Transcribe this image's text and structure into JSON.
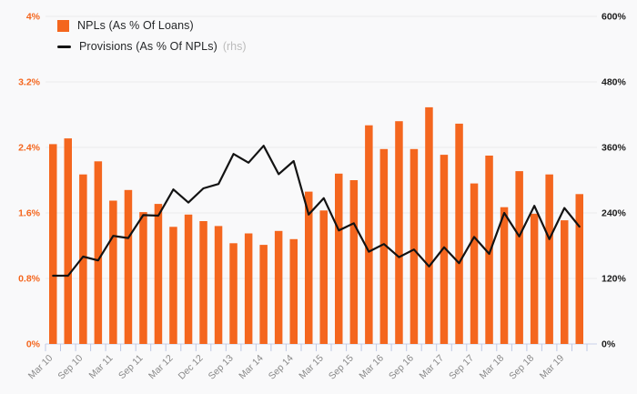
{
  "legend": {
    "items": [
      {
        "label": "NPLs (As % Of Loans)",
        "suffix": ""
      },
      {
        "label": "Provisions (As % Of NPLs)",
        "suffix": "(rhs)"
      }
    ]
  },
  "colors": {
    "bar": "#f4661e",
    "line": "#131313",
    "left_axis_label": "#f4661e",
    "right_axis_label": "#1c1c1c",
    "x_label": "#8a8a8a",
    "tick": "#bfc9e6",
    "baseline": "#c9d1ea",
    "grid": "#eaeaec",
    "background": "#f9f9fa",
    "rhs_suffix": "#bcbcbc",
    "legend_text": "#26282a"
  },
  "chart_data": {
    "type": "bar",
    "subtype": "bar+line dual axis combo",
    "n_points": 36,
    "x_tick_labels": [
      "Mar 10",
      "Sep 10",
      "Mar 11",
      "Sep 11",
      "Mar 12",
      "Dec 12",
      "Sep 13",
      "Mar 14",
      "Sep 14",
      "Mar 15",
      "Sep 15",
      "Mar 16",
      "Sep 16",
      "Mar 17",
      "Sep 17",
      "Mar 18",
      "Sep 18",
      "Mar 19"
    ],
    "x_label_every": 2,
    "series": [
      {
        "name": "NPLs (As % Of Loans)",
        "type": "bar",
        "axis": "left",
        "unit": "%",
        "values": [
          2.44,
          2.51,
          2.07,
          2.23,
          1.75,
          1.88,
          1.61,
          1.71,
          1.43,
          1.58,
          1.5,
          1.44,
          1.23,
          1.35,
          1.21,
          1.38,
          1.28,
          1.86,
          1.63,
          2.08,
          2.0,
          2.67,
          2.38,
          2.72,
          2.38,
          2.89,
          2.31,
          2.69,
          1.96,
          2.3,
          1.67,
          2.11,
          1.59,
          2.07,
          1.51,
          1.83
        ]
      },
      {
        "name": "Provisions (As % Of NPLs)",
        "type": "line",
        "axis": "right",
        "unit": "%",
        "values": [
          125,
          125,
          160,
          153,
          198,
          194,
          236,
          235,
          283,
          259,
          285,
          293,
          348,
          332,
          363,
          311,
          335,
          237,
          267,
          208,
          221,
          169,
          183,
          159,
          173,
          142,
          177,
          148,
          196,
          165,
          240,
          197,
          253,
          192,
          249,
          215
        ]
      }
    ],
    "left_axis": {
      "min": 0,
      "max": 4,
      "tick_step": 0.8,
      "tick_labels": [
        "0%",
        "0.8%",
        "1.6%",
        "2.4%",
        "3.2%",
        "4%"
      ]
    },
    "right_axis": {
      "min": 0,
      "max": 600,
      "tick_step": 120,
      "tick_labels": [
        "0%",
        "120%",
        "240%",
        "360%",
        "480%",
        "600%"
      ]
    },
    "title": "",
    "grid": "horizontal",
    "legend_position": "top-left inside plot"
  }
}
